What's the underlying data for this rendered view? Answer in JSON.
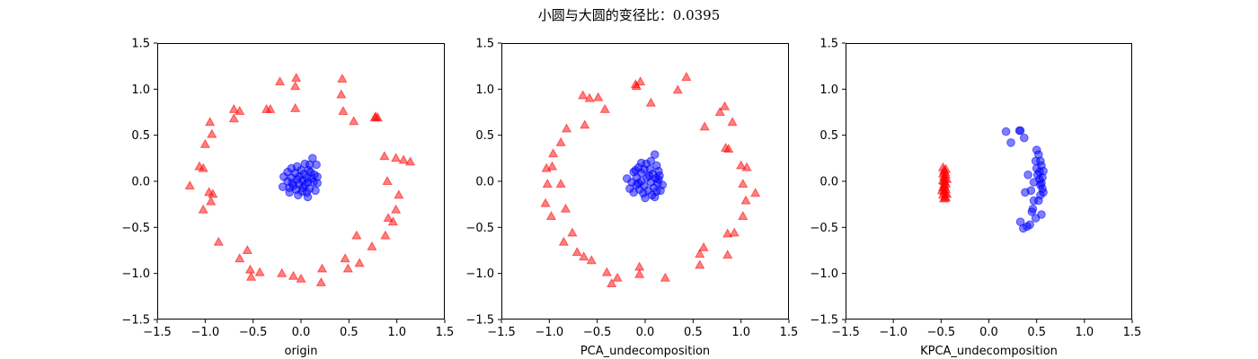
{
  "figure": {
    "suptitle": "小圆与大圆的变径比：0.0395"
  },
  "chart_data": [
    {
      "type": "scatter",
      "xlabel": "origin",
      "xlim": [
        -1.5,
        1.5
      ],
      "ylim": [
        -1.5,
        1.5
      ],
      "ticks": [
        -1.5,
        -1.0,
        -0.5,
        0.0,
        0.5,
        1.0,
        1.5
      ],
      "tick_labels": [
        "−1.5",
        "−1.0",
        "−0.5",
        "0.0",
        "0.5",
        "1.0",
        "1.5"
      ],
      "series": [
        {
          "marker": "triangle",
          "color": "#ff0000",
          "points": [
            [
              -0.05,
              1.12
            ],
            [
              -0.06,
              1.03
            ],
            [
              -0.22,
              1.08
            ],
            [
              0.43,
              1.11
            ],
            [
              0.42,
              0.94
            ],
            [
              -0.32,
              0.78
            ],
            [
              -0.36,
              0.78
            ],
            [
              -0.06,
              0.79
            ],
            [
              -0.7,
              0.78
            ],
            [
              -0.64,
              0.76
            ],
            [
              -0.7,
              0.68
            ],
            [
              -0.95,
              0.64
            ],
            [
              -0.93,
              0.51
            ],
            [
              -1.0,
              0.4
            ],
            [
              -1.06,
              0.16
            ],
            [
              -1.02,
              0.14
            ],
            [
              -1.16,
              -0.05
            ],
            [
              -0.96,
              -0.12
            ],
            [
              -0.92,
              -0.14
            ],
            [
              -0.94,
              -0.22
            ],
            [
              -1.02,
              -0.31
            ],
            [
              -0.86,
              -0.66
            ],
            [
              -0.56,
              -0.75
            ],
            [
              -0.64,
              -0.84
            ],
            [
              -0.53,
              -0.96
            ],
            [
              -0.43,
              -0.99
            ],
            [
              -0.52,
              -1.04
            ],
            [
              -0.2,
              -1.0
            ],
            [
              -0.08,
              -1.03
            ],
            [
              0.0,
              -1.06
            ],
            [
              0.22,
              -0.95
            ],
            [
              0.21,
              -1.1
            ],
            [
              0.46,
              -0.84
            ],
            [
              0.49,
              -0.95
            ],
            [
              0.58,
              -0.59
            ],
            [
              0.61,
              -0.89
            ],
            [
              0.74,
              -0.71
            ],
            [
              0.88,
              -0.59
            ],
            [
              0.91,
              -0.4
            ],
            [
              0.99,
              -0.31
            ],
            [
              0.96,
              -0.44
            ],
            [
              1.02,
              -0.15
            ],
            [
              0.9,
              0.0
            ],
            [
              0.87,
              0.27
            ],
            [
              0.99,
              0.25
            ],
            [
              1.07,
              0.23
            ],
            [
              1.14,
              0.21
            ],
            [
              0.77,
              0.69
            ],
            [
              0.78,
              0.7
            ],
            [
              0.8,
              0.69
            ],
            [
              0.55,
              0.65
            ],
            [
              0.44,
              0.76
            ]
          ]
        },
        {
          "marker": "circle",
          "color": "#0000ff",
          "points": [
            [
              0.12,
              0.25
            ],
            [
              0.04,
              0.19
            ],
            [
              0.09,
              0.18
            ],
            [
              0.16,
              0.18
            ],
            [
              -0.04,
              0.16
            ],
            [
              -0.1,
              0.14
            ],
            [
              0.0,
              0.12
            ],
            [
              0.08,
              0.12
            ],
            [
              -0.14,
              0.1
            ],
            [
              -0.06,
              0.09
            ],
            [
              0.03,
              0.08
            ],
            [
              0.14,
              0.07
            ],
            [
              0.17,
              0.05
            ],
            [
              -0.18,
              0.05
            ],
            [
              -0.1,
              0.04
            ],
            [
              0.06,
              0.04
            ],
            [
              0.11,
              0.03
            ],
            [
              -0.04,
              0.02
            ],
            [
              0.02,
              0.01
            ],
            [
              -0.14,
              0.0
            ],
            [
              0.07,
              -0.01
            ],
            [
              0.13,
              -0.01
            ],
            [
              0.17,
              -0.02
            ],
            [
              -0.09,
              -0.02
            ],
            [
              -0.02,
              -0.03
            ],
            [
              0.04,
              -0.04
            ],
            [
              -0.19,
              -0.06
            ],
            [
              -0.12,
              -0.07
            ],
            [
              0.09,
              -0.08
            ],
            [
              0.15,
              -0.1
            ],
            [
              -0.05,
              -0.09
            ],
            [
              0.01,
              -0.11
            ],
            [
              0.06,
              -0.12
            ],
            [
              -0.03,
              -0.15
            ],
            [
              0.07,
              -0.17
            ],
            [
              -0.08,
              -0.05
            ],
            [
              -0.02,
              0.05
            ],
            [
              0.1,
              0.1
            ],
            [
              -0.12,
              -0.12
            ],
            [
              0.02,
              -0.07
            ]
          ]
        }
      ]
    },
    {
      "type": "scatter",
      "xlabel": "PCA_undecomposition",
      "xlim": [
        -1.5,
        1.5
      ],
      "ylim": [
        -1.5,
        1.5
      ],
      "ticks": [
        -1.5,
        -1.0,
        -0.5,
        0.0,
        0.5,
        1.0,
        1.5
      ],
      "tick_labels": [
        "−1.5",
        "−1.0",
        "−0.5",
        "0.0",
        "0.5",
        "1.0",
        "1.5"
      ],
      "series": [
        {
          "marker": "triangle",
          "color": "#ff0000",
          "points": [
            [
              -0.1,
              1.05
            ],
            [
              -0.05,
              1.08
            ],
            [
              -0.09,
              1.03
            ],
            [
              0.06,
              0.85
            ],
            [
              0.34,
              0.99
            ],
            [
              0.43,
              1.13
            ],
            [
              -0.65,
              0.93
            ],
            [
              -0.58,
              0.9
            ],
            [
              -0.49,
              0.91
            ],
            [
              -0.42,
              0.78
            ],
            [
              -0.63,
              0.61
            ],
            [
              -0.82,
              0.57
            ],
            [
              -0.88,
              0.42
            ],
            [
              -0.96,
              0.3
            ],
            [
              -0.97,
              0.16
            ],
            [
              -1.03,
              0.14
            ],
            [
              -0.88,
              -0.03
            ],
            [
              -1.02,
              -0.03
            ],
            [
              -0.83,
              -0.3
            ],
            [
              -1.04,
              -0.24
            ],
            [
              -0.98,
              -0.38
            ],
            [
              -0.85,
              -0.66
            ],
            [
              -0.76,
              -0.56
            ],
            [
              -0.71,
              -0.77
            ],
            [
              -0.64,
              -0.82
            ],
            [
              -0.56,
              -0.86
            ],
            [
              -0.4,
              -0.99
            ],
            [
              -0.35,
              -1.11
            ],
            [
              -0.29,
              -1.05
            ],
            [
              -0.06,
              -0.93
            ],
            [
              -0.06,
              -1.01
            ],
            [
              0.21,
              -1.05
            ],
            [
              0.57,
              -0.91
            ],
            [
              0.57,
              -0.79
            ],
            [
              0.61,
              -0.72
            ],
            [
              0.86,
              -0.57
            ],
            [
              0.93,
              -0.56
            ],
            [
              0.86,
              -0.8
            ],
            [
              1.02,
              -0.38
            ],
            [
              1.05,
              -0.21
            ],
            [
              1.15,
              -0.13
            ],
            [
              1.02,
              -0.03
            ],
            [
              1.06,
              0.15
            ],
            [
              1.0,
              0.17
            ],
            [
              0.84,
              0.36
            ],
            [
              0.87,
              0.35
            ],
            [
              0.91,
              0.64
            ],
            [
              0.83,
              0.81
            ],
            [
              0.78,
              0.75
            ],
            [
              0.62,
              0.59
            ]
          ]
        },
        {
          "marker": "circle",
          "color": "#0000ff",
          "points": [
            [
              0.1,
              0.29
            ],
            [
              0.06,
              0.22
            ],
            [
              0.01,
              0.19
            ],
            [
              0.12,
              0.17
            ],
            [
              -0.07,
              0.15
            ],
            [
              -0.01,
              0.13
            ],
            [
              0.05,
              0.13
            ],
            [
              0.14,
              0.11
            ],
            [
              -0.12,
              0.1
            ],
            [
              -0.04,
              0.09
            ],
            [
              0.08,
              0.08
            ],
            [
              0.15,
              0.06
            ],
            [
              -0.19,
              0.03
            ],
            [
              -0.09,
              0.04
            ],
            [
              0.02,
              0.04
            ],
            [
              0.11,
              0.03
            ],
            [
              -0.14,
              -0.01
            ],
            [
              -0.04,
              0.0
            ],
            [
              0.06,
              -0.01
            ],
            [
              0.13,
              -0.02
            ],
            [
              0.18,
              -0.04
            ],
            [
              -0.09,
              -0.04
            ],
            [
              -0.01,
              -0.05
            ],
            [
              0.09,
              -0.07
            ],
            [
              -0.16,
              -0.08
            ],
            [
              -0.06,
              -0.09
            ],
            [
              0.03,
              -0.1
            ],
            [
              0.12,
              -0.11
            ],
            [
              -0.12,
              -0.12
            ],
            [
              -0.02,
              -0.13
            ],
            [
              0.07,
              -0.15
            ],
            [
              0.1,
              -0.17
            ],
            [
              0.0,
              -0.18
            ],
            [
              0.16,
              -0.1
            ],
            [
              -0.04,
              0.2
            ],
            [
              0.04,
              0.06
            ],
            [
              -0.07,
              -0.02
            ],
            [
              0.14,
              0.02
            ],
            [
              -0.1,
              0.12
            ]
          ]
        }
      ]
    },
    {
      "type": "scatter",
      "xlabel": "KPCA_undecomposition",
      "xlim": [
        -1.5,
        1.5
      ],
      "ylim": [
        -1.5,
        1.5
      ],
      "ticks": [
        -1.5,
        -1.0,
        -0.5,
        0.0,
        0.5,
        1.0,
        1.5
      ],
      "tick_labels": [
        "−1.5",
        "−1.0",
        "−0.5",
        "0.0",
        "0.5",
        "1.0",
        "1.5"
      ],
      "series": [
        {
          "marker": "triangle",
          "color": "#ff0000",
          "points": [
            [
              -0.47,
              0.12
            ],
            [
              -0.46,
              0.1
            ],
            [
              -0.48,
              0.08
            ],
            [
              -0.45,
              0.07
            ],
            [
              -0.47,
              0.05
            ],
            [
              -0.46,
              0.03
            ],
            [
              -0.44,
              0.02
            ],
            [
              -0.48,
              0.01
            ],
            [
              -0.46,
              -0.01
            ],
            [
              -0.45,
              -0.03
            ],
            [
              -0.47,
              -0.04
            ],
            [
              -0.46,
              -0.06
            ],
            [
              -0.48,
              -0.07
            ],
            [
              -0.45,
              -0.09
            ],
            [
              -0.47,
              -0.11
            ],
            [
              -0.46,
              -0.13
            ],
            [
              -0.48,
              -0.15
            ],
            [
              -0.46,
              -0.17
            ],
            [
              -0.47,
              -0.19
            ],
            [
              -0.45,
              0.13
            ],
            [
              -0.49,
              -0.1
            ],
            [
              -0.44,
              -0.14
            ],
            [
              -0.48,
              0.15
            ],
            [
              -0.47,
              0.0
            ],
            [
              -0.45,
              -0.18
            ]
          ]
        },
        {
          "marker": "circle",
          "color": "#0000ff",
          "points": [
            [
              0.18,
              0.54
            ],
            [
              0.32,
              0.55
            ],
            [
              0.33,
              0.55
            ],
            [
              0.37,
              0.47
            ],
            [
              0.23,
              0.42
            ],
            [
              0.5,
              0.34
            ],
            [
              0.52,
              0.29
            ],
            [
              0.49,
              0.22
            ],
            [
              0.54,
              0.22
            ],
            [
              0.55,
              0.17
            ],
            [
              0.57,
              0.11
            ],
            [
              0.53,
              0.1
            ],
            [
              0.51,
              0.07
            ],
            [
              0.56,
              0.04
            ],
            [
              0.41,
              0.07
            ],
            [
              0.47,
              -0.01
            ],
            [
              0.54,
              -0.04
            ],
            [
              0.56,
              -0.08
            ],
            [
              0.57,
              -0.12
            ],
            [
              0.44,
              -0.1
            ],
            [
              0.54,
              -0.15
            ],
            [
              0.38,
              -0.12
            ],
            [
              0.52,
              -0.21
            ],
            [
              0.47,
              -0.21
            ],
            [
              0.46,
              -0.3
            ],
            [
              0.55,
              -0.36
            ],
            [
              0.45,
              -0.33
            ],
            [
              0.49,
              -0.4
            ],
            [
              0.33,
              -0.44
            ],
            [
              0.43,
              -0.47
            ],
            [
              0.4,
              -0.49
            ],
            [
              0.36,
              -0.51
            ],
            [
              0.53,
              0.02
            ],
            [
              0.55,
              -0.02
            ],
            [
              0.5,
              0.14
            ]
          ]
        }
      ]
    }
  ]
}
